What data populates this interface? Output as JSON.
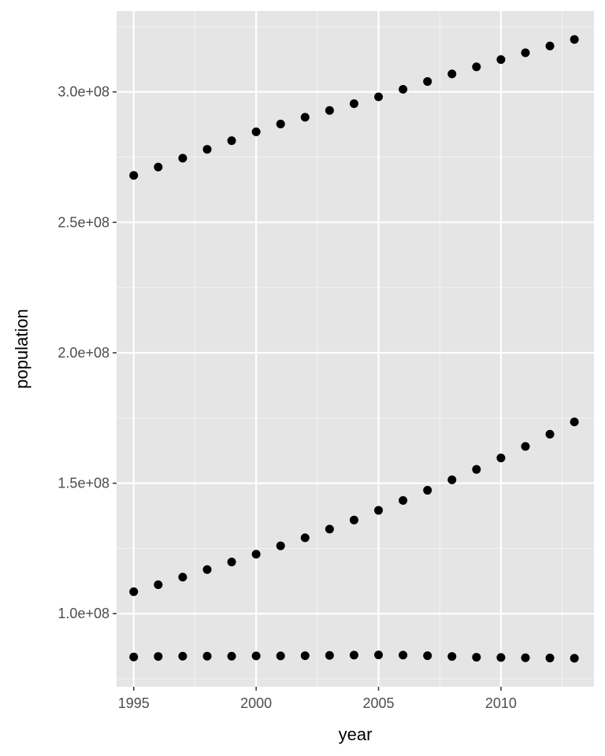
{
  "chart_data": {
    "type": "scatter",
    "title": "",
    "xlabel": "year",
    "ylabel": "population",
    "xlim": [
      1994.3,
      2013.8
    ],
    "ylim": [
      72000000,
      331000000
    ],
    "x_ticks": [
      {
        "value": 1995,
        "label": "1995"
      },
      {
        "value": 2000,
        "label": "2000"
      },
      {
        "value": 2005,
        "label": "2005"
      },
      {
        "value": 2010,
        "label": "2010"
      }
    ],
    "y_ticks": [
      {
        "value": 100000000,
        "label": "1.0e+08"
      },
      {
        "value": 150000000,
        "label": "1.5e+08"
      },
      {
        "value": 200000000,
        "label": "2.0e+08"
      },
      {
        "value": 250000000,
        "label": "2.5e+08"
      },
      {
        "value": 300000000,
        "label": "3.0e+08"
      }
    ],
    "grid": true,
    "panel_background": "#e5e5e5",
    "gridline_color": "#ffffff",
    "point_color": "#000000",
    "x": [
      1995,
      1996,
      1997,
      1998,
      1999,
      2000,
      2001,
      2002,
      2003,
      2004,
      2005,
      2006,
      2007,
      2008,
      2009,
      2010,
      2011,
      2012,
      2013
    ],
    "series": [
      {
        "values": [
          268000000,
          271200000,
          274600000,
          278000000,
          281300000,
          284700000,
          287700000,
          290300000,
          292900000,
          295500000,
          298100000,
          301000000,
          304000000,
          306900000,
          309600000,
          312400000,
          315000000,
          317600000,
          320100000
        ]
      },
      {
        "values": [
          108400000,
          111100000,
          114000000,
          116900000,
          119800000,
          122800000,
          126000000,
          129100000,
          132400000,
          135900000,
          139600000,
          143400000,
          147300000,
          151300000,
          155300000,
          159700000,
          164100000,
          168800000,
          173500000
        ]
      },
      {
        "values": [
          83400000,
          83600000,
          83700000,
          83700000,
          83700000,
          83800000,
          83800000,
          83900000,
          84000000,
          84100000,
          84200000,
          84100000,
          83900000,
          83600000,
          83300000,
          83200000,
          83100000,
          83000000,
          82900000
        ]
      }
    ]
  }
}
